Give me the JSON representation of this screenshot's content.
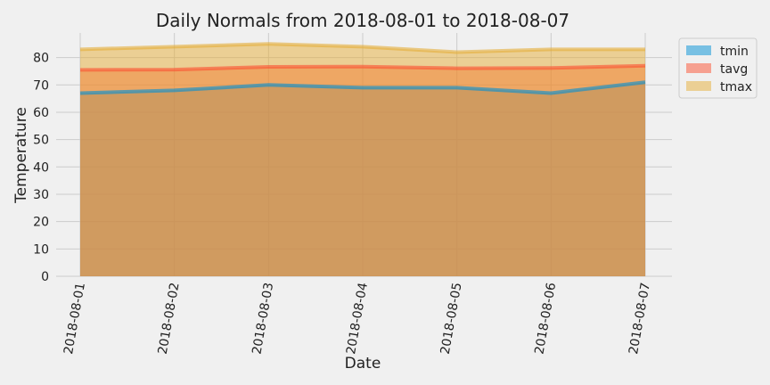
{
  "chart_data": {
    "type": "area",
    "title": "Daily Normals from 2018-08-01 to 2018-08-07",
    "xlabel": "Date",
    "ylabel": "Temperature",
    "x": [
      "2018-08-01",
      "2018-08-02",
      "2018-08-03",
      "2018-08-04",
      "2018-08-05",
      "2018-08-06",
      "2018-08-07"
    ],
    "ylim": [
      0,
      89
    ],
    "yticks": [
      0,
      10,
      20,
      30,
      40,
      50,
      60,
      70,
      80
    ],
    "grid": true,
    "stacked": false,
    "legend_position": "top-right",
    "series": [
      {
        "name": "tmin",
        "values": [
          67,
          68,
          70,
          69,
          69,
          67,
          71
        ],
        "color": "#008fd5"
      },
      {
        "name": "tavg",
        "values": [
          75.5,
          75.6,
          76.6,
          76.7,
          76.1,
          76.2,
          77.0
        ],
        "color": "#fc4f30"
      },
      {
        "name": "tmax",
        "values": [
          83,
          84,
          85,
          84,
          82,
          83,
          83
        ],
        "color": "#e5ae38"
      }
    ]
  }
}
